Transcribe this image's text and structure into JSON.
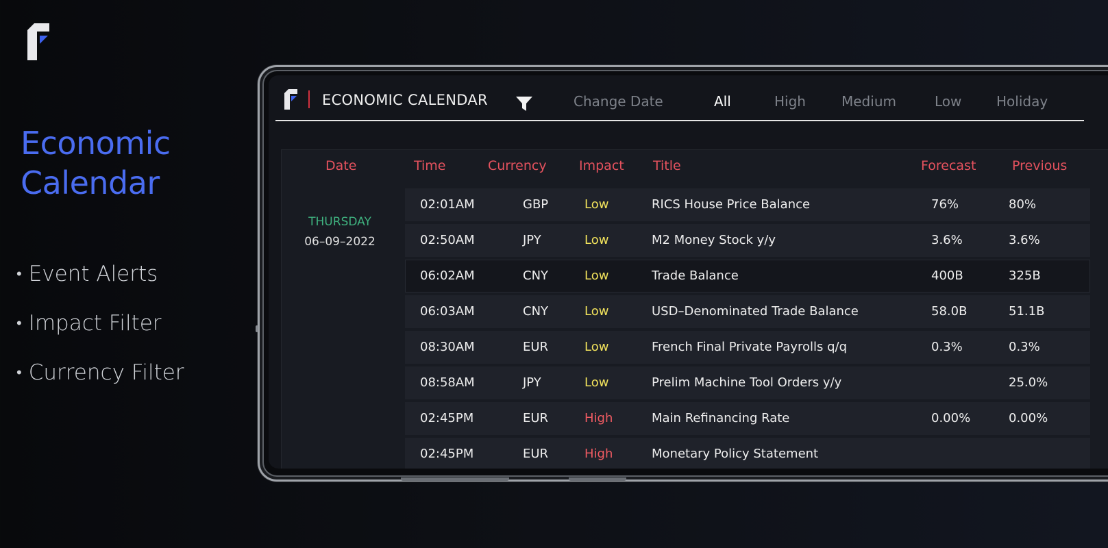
{
  "hero": {
    "title_line1": "Economic",
    "title_line2": "Calendar",
    "features": [
      "Event Alerts",
      "Impact Filter",
      "Currency Filter"
    ],
    "bullet": "•"
  },
  "app": {
    "title": "ECONOMIC CALENDAR",
    "change_date": "Change Date",
    "tabs": [
      "All",
      "High",
      "Medium",
      "Low",
      "Holiday"
    ],
    "active_tab": "All"
  },
  "table": {
    "headers": {
      "date": "Date",
      "time": "Time",
      "currency": "Currency",
      "impact": "Impact",
      "title": "Title",
      "forecast": "Forecast",
      "previous": "Previous"
    },
    "day": "THURSDAY",
    "date": "06–09–2022",
    "rows": [
      {
        "time": "02:01AM",
        "currency": "GBP",
        "impact": "Low",
        "title": "RICS House Price Balance",
        "forecast": "76%",
        "previous": "80%"
      },
      {
        "time": "02:50AM",
        "currency": "JPY",
        "impact": "Low",
        "title": "M2 Money Stock y/y",
        "forecast": "3.6%",
        "previous": "3.6%"
      },
      {
        "time": "06:02AM",
        "currency": "CNY",
        "impact": "Low",
        "title": "Trade Balance",
        "forecast": "400B",
        "previous": "325B"
      },
      {
        "time": "06:03AM",
        "currency": "CNY",
        "impact": "Low",
        "title": "USD–Denominated Trade Balance",
        "forecast": "58.0B",
        "previous": "51.1B"
      },
      {
        "time": "08:30AM",
        "currency": "EUR",
        "impact": "Low",
        "title": "French Final Private Payrolls q/q",
        "forecast": "0.3%",
        "previous": "0.3%"
      },
      {
        "time": "08:58AM",
        "currency": "JPY",
        "impact": "Low",
        "title": "Prelim Machine Tool Orders y/y",
        "forecast": "",
        "previous": "25.0%"
      },
      {
        "time": "02:45PM",
        "currency": "EUR",
        "impact": "High",
        "title": "Main Refinancing Rate",
        "forecast": "0.00%",
        "previous": "0.00%"
      },
      {
        "time": "02:45PM",
        "currency": "EUR",
        "impact": "High",
        "title": "Monetary Policy Statement",
        "forecast": "",
        "previous": ""
      }
    ]
  },
  "colors": {
    "accent_blue": "#4a6cf0",
    "header_red": "#e5525e",
    "low_yellow": "#f2e35c",
    "high_red": "#ef5b62",
    "day_green": "#3fb27f"
  }
}
